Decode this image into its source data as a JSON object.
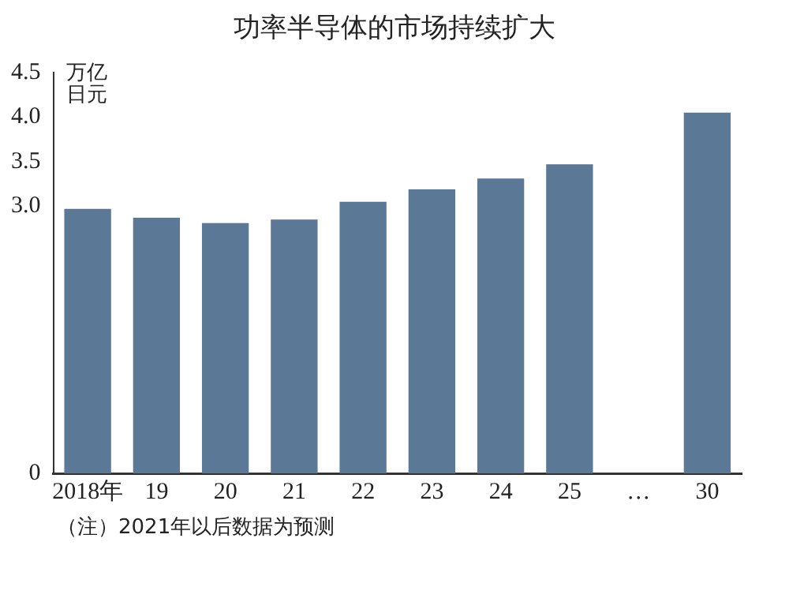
{
  "chart_data": {
    "type": "bar",
    "title": "功率半导体的市场持续扩大",
    "ylabel": "万亿日元",
    "categories": [
      "2018年",
      "19",
      "20",
      "21",
      "22",
      "23",
      "24",
      "25",
      "…",
      "30"
    ],
    "values": [
      2.97,
      2.87,
      2.81,
      2.85,
      3.05,
      3.19,
      3.31,
      3.47,
      null,
      4.05
    ],
    "color": "#5b7896",
    "ylim": [
      0,
      4.5
    ],
    "yticks": [
      0,
      {
        "value": 3.0,
        "label": "3.0"
      },
      {
        "value": 3.5,
        "label": "3.5"
      },
      {
        "value": 4.0,
        "label": "4.0"
      },
      {
        "value": 4.5,
        "label": "4.5"
      }
    ],
    "grid": false,
    "annotations": [
      "（注）2021年以后数据为预测"
    ]
  }
}
